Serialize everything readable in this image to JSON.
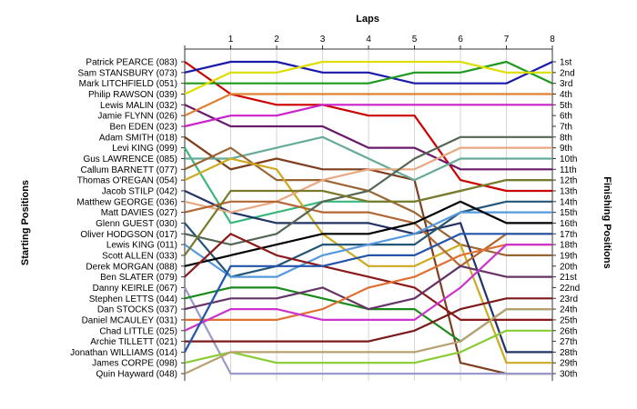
{
  "chart_data": {
    "type": "line",
    "title": "",
    "xlabel": "Laps",
    "ylabel_left": "Starting Positions",
    "ylabel_right": "Finishing Positions",
    "x": [
      0,
      1,
      2,
      3,
      4,
      5,
      6,
      7,
      8
    ],
    "x_tick_labels": [
      "1",
      "2",
      "3",
      "4",
      "5",
      "6",
      "7",
      "8"
    ],
    "y_range": [
      1,
      30
    ],
    "grid": "vertical",
    "legend": "none",
    "finishing_labels": [
      "1st",
      "2nd",
      "3rd",
      "4th",
      "5th",
      "6th",
      "7th",
      "8th",
      "9th",
      "10th",
      "11th",
      "12th",
      "13th",
      "14th",
      "15th",
      "16th",
      "17th",
      "18th",
      "19th",
      "20th",
      "21st",
      "22nd",
      "23rd",
      "24th",
      "25th",
      "26th",
      "27th",
      "28th",
      "29th",
      "30th"
    ],
    "series": [
      {
        "name": "Patrick PEARCE (083)",
        "color": "#cc0000",
        "positions": [
          1,
          4,
          5,
          5,
          6,
          6,
          12,
          13,
          13
        ]
      },
      {
        "name": "Sam STANSBURY (073)",
        "color": "#1a1aaa",
        "positions": [
          2,
          1,
          1,
          2,
          2,
          3,
          3,
          3,
          1
        ]
      },
      {
        "name": "Mark LITCHFIELD (051)",
        "color": "#1e9a1e",
        "positions": [
          3,
          3,
          3,
          3,
          3,
          2,
          2,
          1,
          3
        ]
      },
      {
        "name": "Philip RAWSON (039)",
        "color": "#dddd00",
        "positions": [
          4,
          2,
          2,
          1,
          1,
          1,
          1,
          2,
          2
        ]
      },
      {
        "name": "Lewis MALIN (032)",
        "color": "#6a1a6a",
        "positions": [
          5,
          7,
          7,
          7,
          9,
          9,
          11,
          11,
          11
        ]
      },
      {
        "name": "Jamie FLYNN (026)",
        "color": "#e08030",
        "positions": [
          6,
          4,
          4,
          4,
          4,
          4,
          4,
          4,
          4
        ]
      },
      {
        "name": "Ben EDEN (023)",
        "color": "#cc22cc",
        "positions": [
          7,
          6,
          6,
          5,
          5,
          5,
          5,
          5,
          5
        ]
      },
      {
        "name": "Adam SMITH (018)",
        "color": "#7f3f1f",
        "positions": [
          8,
          11,
          10,
          11,
          11,
          12,
          29,
          30,
          30
        ]
      },
      {
        "name": "Levi KING (099)",
        "color": "#3ab87a",
        "positions": [
          9,
          16,
          15,
          14,
          14,
          14,
          13,
          12,
          12
        ]
      },
      {
        "name": "Gus LAWRENCE (085)",
        "color": "#66aa99",
        "positions": [
          10,
          10,
          9,
          8,
          10,
          12,
          10,
          10,
          10
        ]
      },
      {
        "name": "Callum BARNETT (077)",
        "color": "#996633",
        "positions": [
          11,
          9,
          12,
          12,
          13,
          15,
          18,
          19,
          19
        ]
      },
      {
        "name": "Thomas O'REGAN (054)",
        "color": "#ccaa22",
        "positions": [
          12,
          10,
          11,
          17,
          20,
          20,
          18,
          29,
          29
        ]
      },
      {
        "name": "Jacob STILP (042)",
        "color": "#223366",
        "positions": [
          13,
          15,
          16,
          16,
          16,
          17,
          16,
          28,
          28
        ]
      },
      {
        "name": "Matthew GEORGE (036)",
        "color": "#e8a880",
        "positions": [
          14,
          15,
          14,
          12,
          11,
          11,
          9,
          9,
          9
        ]
      },
      {
        "name": "Matt DAVIES (027)",
        "color": "#b26633",
        "positions": [
          15,
          14,
          14,
          15,
          15,
          16,
          20,
          17,
          17
        ]
      },
      {
        "name": "Glenn GUEST (030)",
        "color": "#225577",
        "positions": [
          16,
          21,
          20,
          18,
          18,
          18,
          15,
          14,
          14
        ]
      },
      {
        "name": "Oliver HODGSON (017)",
        "color": "#556655",
        "positions": [
          17,
          18,
          17,
          14,
          13,
          10,
          8,
          8,
          8
        ]
      },
      {
        "name": "Lewis KING (011)",
        "color": "#5599dd",
        "positions": [
          18,
          21,
          21,
          19,
          18,
          17,
          15,
          15,
          15
        ]
      },
      {
        "name": "Scott ALLEN (033)",
        "color": "#7a7a2a",
        "positions": [
          19,
          13,
          13,
          13,
          14,
          14,
          13,
          12,
          12
        ]
      },
      {
        "name": "Derek MORGAN (088)",
        "color": "#000000",
        "positions": [
          20,
          19,
          18,
          17,
          17,
          16,
          14,
          16,
          16
        ]
      },
      {
        "name": "Ben SLATER (079)",
        "color": "#8a1a1a",
        "positions": [
          21,
          17,
          19,
          20,
          21,
          22,
          25,
          25,
          25
        ]
      },
      {
        "name": "Danny KEIRLE (067)",
        "color": "#9999cc",
        "positions": [
          22,
          30,
          30,
          30,
          30,
          30,
          30,
          30,
          30
        ]
      },
      {
        "name": "Stephen LETTS (044)",
        "color": "#1a8a1a",
        "positions": [
          23,
          22,
          22,
          23,
          24,
          24,
          27,
          24,
          24
        ]
      },
      {
        "name": "Dan STOCKS (037)",
        "color": "#663366",
        "positions": [
          24,
          23,
          23,
          22,
          24,
          23,
          20,
          21,
          21
        ]
      },
      {
        "name": "Daniel MCAULEY (031)",
        "color": "#e07030",
        "positions": [
          25,
          25,
          25,
          24,
          22,
          21,
          19,
          18,
          18
        ]
      },
      {
        "name": "Chad LITTLE (025)",
        "color": "#cc33cc",
        "positions": [
          26,
          24,
          24,
          25,
          25,
          25,
          22,
          18,
          18
        ]
      },
      {
        "name": "Archie TILLETT (021)",
        "color": "#7a1a1a",
        "positions": [
          27,
          27,
          27,
          27,
          27,
          26,
          24,
          23,
          23
        ]
      },
      {
        "name": "Jonathan WILLIAMS (014)",
        "color": "#2255aa",
        "positions": [
          28,
          20,
          20,
          20,
          19,
          19,
          17,
          17,
          17
        ]
      },
      {
        "name": "James CORPE (098)",
        "color": "#88cc33",
        "positions": [
          29,
          28,
          29,
          29,
          29,
          29,
          28,
          26,
          26
        ]
      },
      {
        "name": "Quin Hayward (048)",
        "color": "#b8a070",
        "positions": [
          30,
          28,
          28,
          28,
          28,
          28,
          27,
          24,
          24
        ]
      }
    ]
  }
}
